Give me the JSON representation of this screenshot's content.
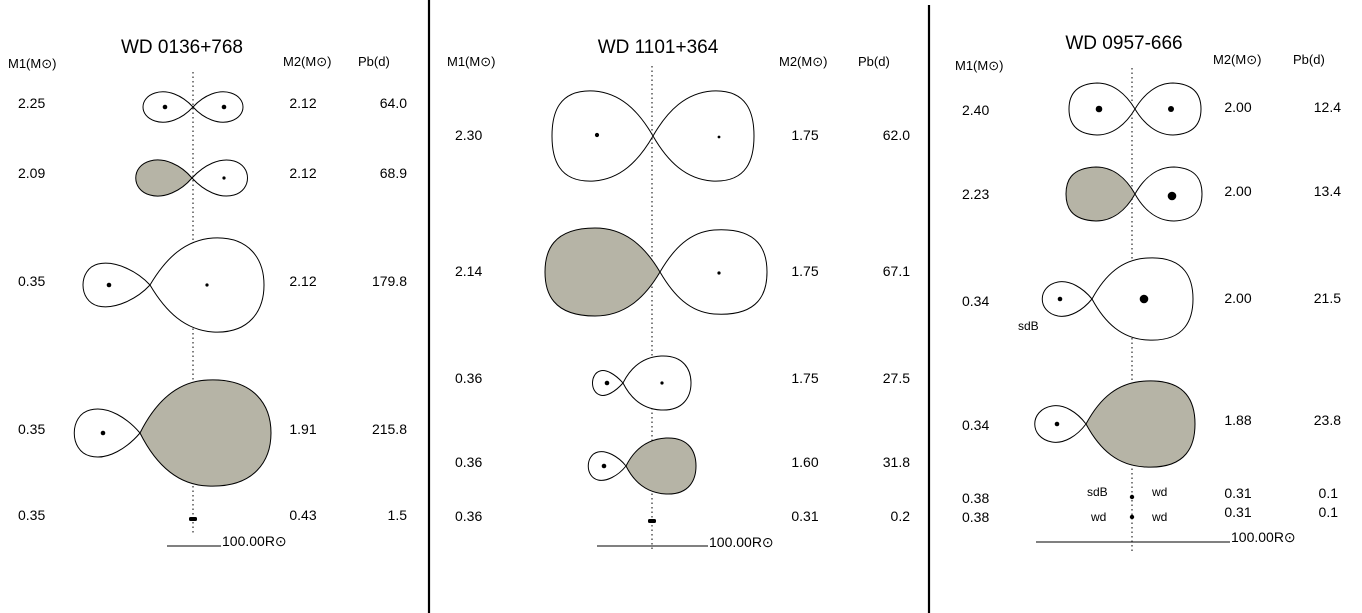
{
  "colors": {
    "roche_lobe_filled": "#b6b4a6",
    "roche_lobe_empty": "#ffffff",
    "outline": "#000000"
  },
  "panels": [
    {
      "title": "WD 0136+768",
      "headers": {
        "m1": "M1(M⊙)",
        "m2": "M2(M⊙)",
        "pb": "Pb(d)"
      },
      "rows": [
        {
          "m1": "2.25",
          "m2": "2.12",
          "pb": "64.0"
        },
        {
          "m1": "2.09",
          "m2": "2.12",
          "pb": "68.9"
        },
        {
          "m1": "0.35",
          "m2": "2.12",
          "pb": "179.8"
        },
        {
          "m1": "0.35",
          "m2": "1.91",
          "pb": "215.8"
        },
        {
          "m1": "0.35",
          "m2": "0.43",
          "pb": "1.5"
        }
      ],
      "scale_label": "100.00R⊙"
    },
    {
      "title": "WD 1101+364",
      "headers": {
        "m1": "M1(M⊙)",
        "m2": "M2(M⊙)",
        "pb": "Pb(d)"
      },
      "rows": [
        {
          "m1": "2.30",
          "m2": "1.75",
          "pb": "62.0"
        },
        {
          "m1": "2.14",
          "m2": "1.75",
          "pb": "67.1"
        },
        {
          "m1": "0.36",
          "m2": "1.75",
          "pb": "27.5"
        },
        {
          "m1": "0.36",
          "m2": "1.60",
          "pb": "31.8"
        },
        {
          "m1": "0.36",
          "m2": "0.31",
          "pb": "0.2"
        }
      ],
      "scale_label": "100.00R⊙"
    },
    {
      "title": "WD 0957-666",
      "headers": {
        "m1": "M1(M⊙)",
        "m2": "M2(M⊙)",
        "pb": "Pb(d)"
      },
      "rows": [
        {
          "m1": "2.40",
          "m2": "2.00",
          "pb": "12.4"
        },
        {
          "m1": "2.23",
          "m2": "2.00",
          "pb": "13.4"
        },
        {
          "m1": "0.34",
          "m2": "2.00",
          "pb": "21.5"
        },
        {
          "m1": "0.34",
          "m2": "1.88",
          "pb": "23.8"
        },
        {
          "m1": "0.38",
          "m2": "0.31",
          "pb": "0.1"
        },
        {
          "m1": "0.38",
          "m2": "0.31",
          "pb": "0.1"
        }
      ],
      "annotations": {
        "sdb": "sdB",
        "sdb_pair": "sdB",
        "wd_pair_right": "wd",
        "wd_row_left": "wd",
        "wd_row_right": "wd"
      },
      "scale_label": "100.00R⊙"
    }
  ]
}
